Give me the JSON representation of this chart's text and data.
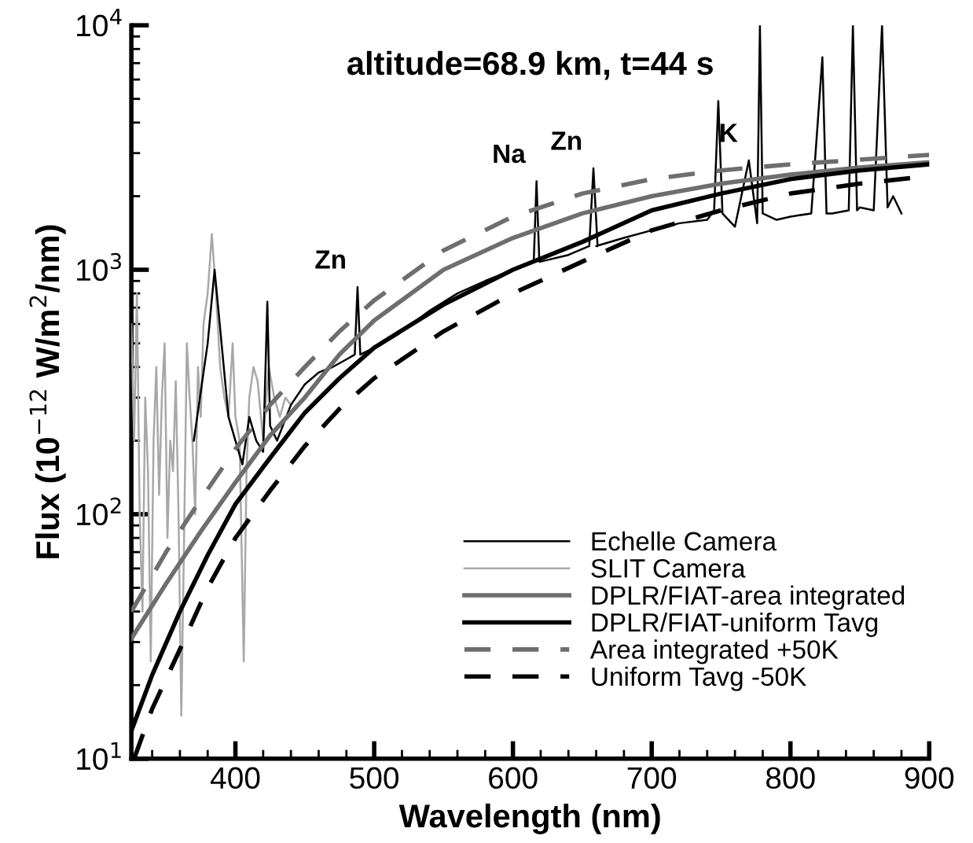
{
  "chart_data": {
    "type": "line",
    "title": "altitude=68.9 km, t=44 s",
    "xlabel": "Wavelength (nm)",
    "ylabel": "Flux (10$^{−12}$ W/m$^{2}$/nm)",
    "log": "y",
    "xlim": [
      325,
      900
    ],
    "ylim": [
      10,
      10000
    ],
    "xticks": [
      {
        "value": 340,
        "label": null
      },
      {
        "value": 360,
        "label": null
      },
      {
        "value": 380,
        "label": null
      },
      400,
      {
        "value": 420,
        "label": null
      },
      {
        "value": 440,
        "label": null
      },
      {
        "value": 460,
        "label": null
      },
      {
        "value": 480,
        "label": null
      },
      500,
      {
        "value": 520,
        "label": null
      },
      {
        "value": 540,
        "label": null
      },
      {
        "value": 560,
        "label": null
      },
      {
        "value": 580,
        "label": null
      },
      600,
      {
        "value": 620,
        "label": null
      },
      {
        "value": 640,
        "label": null
      },
      {
        "value": 660,
        "label": null
      },
      {
        "value": 680,
        "label": null
      },
      700,
      {
        "value": 720,
        "label": null
      },
      {
        "value": 740,
        "label": null
      },
      {
        "value": 760,
        "label": null
      },
      {
        "value": 780,
        "label": null
      },
      800,
      {
        "value": 820,
        "label": null
      },
      {
        "value": 840,
        "label": null
      },
      {
        "value": 860,
        "label": null
      },
      {
        "value": 880,
        "label": null
      },
      900
    ],
    "yticks": [
      {
        "value": 10,
        "label": "10$^{1}$"
      },
      {
        "value": 100,
        "label": "10$^{2}$"
      },
      {
        "value": 1000,
        "label": "10$^{3}$"
      },
      {
        "value": 10000,
        "label": "10$^{4}$"
      }
    ],
    "grid": false,
    "legend": "bottom right",
    "marker": "none",
    "series": [
      {
        "name": "Echelle Camera",
        "color": "#000000",
        "line_style": "solid",
        "x": [
          370,
          380,
          385,
          390,
          395,
          400,
          405,
          410,
          415,
          420,
          423,
          425,
          430,
          440,
          450,
          460,
          470,
          480,
          486,
          488,
          490,
          500,
          520,
          540,
          560,
          580,
          600,
          610,
          615,
          617,
          619,
          620,
          640,
          655,
          658,
          661,
          660,
          680,
          700,
          720,
          740,
          745,
          748,
          751,
          760,
          770,
          776,
          778,
          780,
          790,
          800,
          815,
          823,
          826,
          830,
          842,
          845,
          848,
          850,
          860,
          866,
          870,
          874,
          880
        ],
        "values": [
          200,
          500,
          1000,
          500,
          250,
          200,
          160,
          250,
          200,
          180,
          740,
          230,
          200,
          280,
          340,
          380,
          400,
          430,
          450,
          850,
          450,
          480,
          560,
          680,
          800,
          900,
          1000,
          1050,
          1080,
          2300,
          1080,
          1080,
          1150,
          1250,
          2600,
          1250,
          1250,
          1350,
          1450,
          1550,
          1600,
          1750,
          4900,
          1700,
          1500,
          2800,
          1550,
          10000,
          1700,
          1600,
          1650,
          1700,
          7400,
          1700,
          1700,
          1750,
          10000,
          1750,
          1800,
          1750,
          10000,
          1800,
          2000,
          1700
        ]
      },
      {
        "name": "SLIT Camera",
        "color": "#a8a8a8",
        "line_style": "solid",
        "x": [
          325,
          327,
          329,
          331,
          333,
          335,
          337,
          339,
          341,
          343,
          345,
          347,
          349,
          351,
          353,
          355,
          357,
          359,
          361,
          363,
          365,
          367,
          369,
          371,
          373,
          375,
          377,
          380,
          383,
          386,
          389,
          392,
          395,
          398,
          400,
          403,
          406,
          408,
          410,
          413,
          416,
          420,
          424,
          428,
          432,
          436,
          440
        ],
        "values": [
          600,
          200,
          800,
          100,
          40,
          300,
          150,
          25,
          200,
          400,
          120,
          300,
          500,
          80,
          200,
          150,
          350,
          100,
          15,
          80,
          500,
          300,
          200,
          100,
          400,
          250,
          600,
          800,
          1400,
          800,
          400,
          300,
          250,
          500,
          250,
          200,
          25,
          150,
          300,
          400,
          350,
          200,
          400,
          300,
          250,
          300,
          280
        ]
      },
      {
        "name": "DPLR/FIAT-area integrated",
        "color": "#6e6e6e",
        "line_style": "solid",
        "x": [
          325,
          350,
          375,
          400,
          425,
          450,
          475,
          500,
          550,
          600,
          650,
          700,
          750,
          800,
          850,
          900
        ],
        "values": [
          31,
          52,
          85,
          135,
          210,
          300,
          450,
          620,
          1000,
          1350,
          1700,
          2000,
          2250,
          2450,
          2620,
          2750
        ]
      },
      {
        "name": "DPLR/FIAT-uniform Tavg",
        "color": "#000000",
        "line_style": "solid",
        "x": [
          325,
          340,
          360,
          380,
          400,
          425,
          450,
          475,
          500,
          550,
          600,
          650,
          700,
          750,
          800,
          850,
          900
        ],
        "values": [
          13,
          22,
          40,
          68,
          110,
          170,
          260,
          360,
          480,
          720,
          1000,
          1300,
          1750,
          2050,
          2350,
          2550,
          2700
        ]
      },
      {
        "name": "Area integrated +50K",
        "color": "#6e6e6e",
        "line_style": "dashed",
        "x": [
          325,
          350,
          375,
          400,
          425,
          450,
          475,
          500,
          550,
          600,
          650,
          700,
          750,
          800,
          850,
          900
        ],
        "values": [
          40,
          70,
          115,
          185,
          280,
          400,
          560,
          750,
          1200,
          1650,
          2050,
          2350,
          2550,
          2700,
          2820,
          2950
        ]
      },
      {
        "name": "Uniform Tavg -50K",
        "color": "#000000",
        "line_style": "dashed",
        "x": [
          327,
          340,
          360,
          380,
          400,
          425,
          450,
          475,
          500,
          550,
          600,
          650,
          700,
          750,
          800,
          850,
          900
        ],
        "values": [
          10,
          16,
          28,
          50,
          80,
          125,
          190,
          270,
          360,
          560,
          800,
          1080,
          1450,
          1750,
          2050,
          2250,
          2420
        ]
      }
    ],
    "annotations": [
      {
        "text": "Zn",
        "x": 488,
        "y": 850
      },
      {
        "text": "Na",
        "x": 617,
        "y": 2300
      },
      {
        "text": "Zn",
        "x": 658,
        "y": 2600
      },
      {
        "text": "K",
        "x": 770,
        "y": 2800
      }
    ]
  }
}
